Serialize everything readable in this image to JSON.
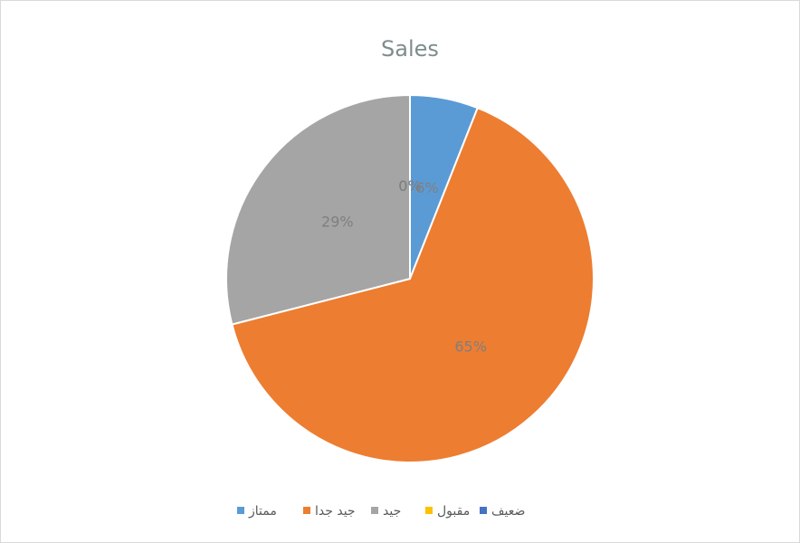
{
  "chart_data": {
    "type": "pie",
    "title": "Sales",
    "categories": [
      "ممتاز",
      "جيد جدا",
      "جيد",
      "مقبول",
      "ضعيف"
    ],
    "values": [
      6,
      65,
      29,
      0,
      0
    ],
    "value_labels": [
      "6%",
      "65%",
      "29%",
      "0%",
      "0%"
    ],
    "colors": [
      "#5b9bd5",
      "#ed7d31",
      "#a5a5a5",
      "#ffc000",
      "#4472c4"
    ],
    "legend": "bottom"
  }
}
